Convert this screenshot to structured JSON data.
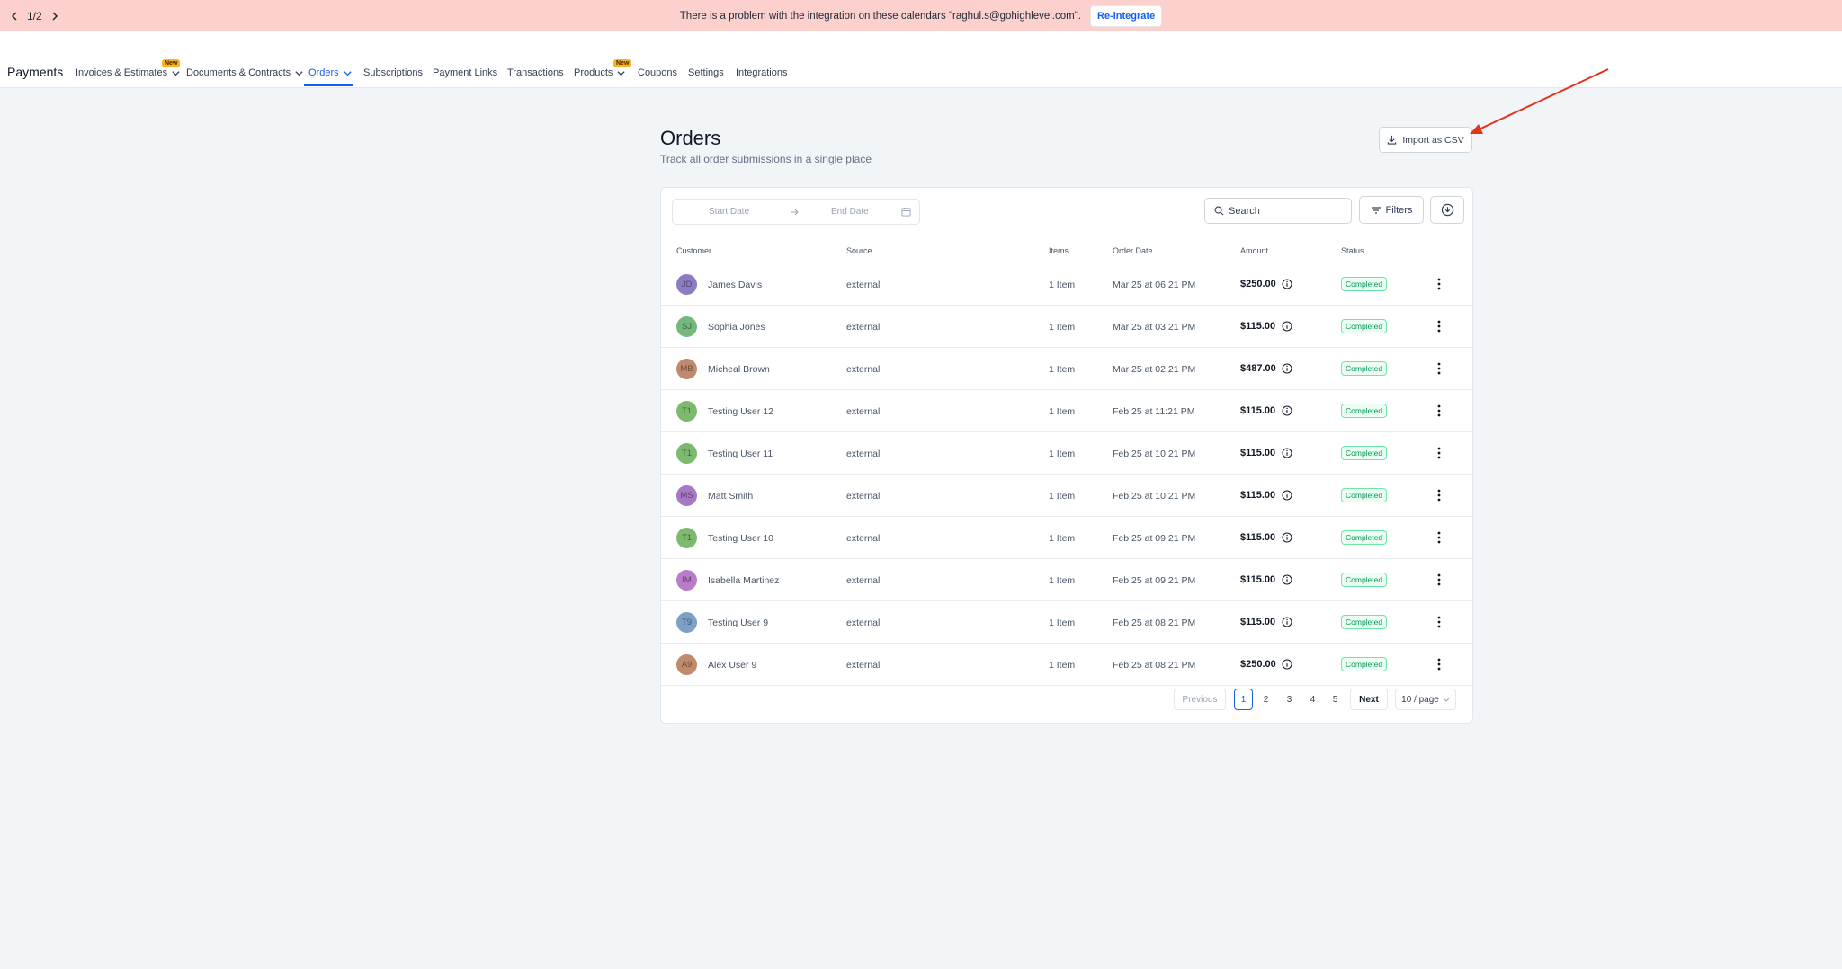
{
  "banner": {
    "pager": "1/2",
    "message": "There is a problem with the integration on these calendars \"raghul.s@gohighlevel.com\".",
    "action_label": "Re-integrate"
  },
  "nav": {
    "brand": "Payments",
    "items": [
      {
        "label": "Invoices & Estimates",
        "badge": "New",
        "dropdown": true
      },
      {
        "label": "Documents & Contracts",
        "dropdown": true
      },
      {
        "label": "Orders",
        "dropdown": true,
        "active": true
      },
      {
        "label": "Subscriptions"
      },
      {
        "label": "Payment Links"
      },
      {
        "label": "Transactions"
      },
      {
        "label": "Products",
        "badge": "New",
        "dropdown": true
      },
      {
        "label": "Coupons"
      },
      {
        "label": "Settings"
      },
      {
        "label": "Integrations"
      }
    ]
  },
  "page": {
    "title": "Orders",
    "subtitle": "Track all order submissions in a single place",
    "import_label": "Import as CSV"
  },
  "toolbar": {
    "start_placeholder": "Start Date",
    "end_placeholder": "End Date",
    "search_placeholder": "Search",
    "filters_label": "Filters"
  },
  "table": {
    "columns": [
      "Customer",
      "Source",
      "Items",
      "Order Date",
      "Amount",
      "Status"
    ],
    "rows": [
      {
        "initials": "JD",
        "avatar_color": "#8e7cc3",
        "customer": "James Davis",
        "source": "external",
        "items": "1 Item",
        "date": "Mar 25 at 06:21 PM",
        "amount": "$250.00",
        "status": "Completed"
      },
      {
        "initials": "SJ",
        "avatar_color": "#76b77e",
        "customer": "Sophia Jones",
        "source": "external",
        "items": "1 Item",
        "date": "Mar 25 at 03:21 PM",
        "amount": "$115.00",
        "status": "Completed"
      },
      {
        "initials": "MB",
        "avatar_color": "#c08a6d",
        "customer": "Micheal Brown",
        "source": "external",
        "items": "1 Item",
        "date": "Mar 25 at 02:21 PM",
        "amount": "$487.00",
        "status": "Completed"
      },
      {
        "initials": "T1",
        "avatar_color": "#7dba6f",
        "customer": "Testing User 12",
        "source": "external",
        "items": "1 Item",
        "date": "Feb 25 at 11:21 PM",
        "amount": "$115.00",
        "status": "Completed"
      },
      {
        "initials": "T1",
        "avatar_color": "#7dba6f",
        "customer": "Testing User 11",
        "source": "external",
        "items": "1 Item",
        "date": "Feb 25 at 10:21 PM",
        "amount": "$115.00",
        "status": "Completed"
      },
      {
        "initials": "MS",
        "avatar_color": "#a779c4",
        "customer": "Matt Smith",
        "source": "external",
        "items": "1 Item",
        "date": "Feb 25 at 10:21 PM",
        "amount": "$115.00",
        "status": "Completed"
      },
      {
        "initials": "T1",
        "avatar_color": "#7dba6f",
        "customer": "Testing User 10",
        "source": "external",
        "items": "1 Item",
        "date": "Feb 25 at 09:21 PM",
        "amount": "$115.00",
        "status": "Completed"
      },
      {
        "initials": "IM",
        "avatar_color": "#b87cc9",
        "customer": "Isabella Martinez",
        "source": "external",
        "items": "1 Item",
        "date": "Feb 25 at 09:21 PM",
        "amount": "$115.00",
        "status": "Completed"
      },
      {
        "initials": "T9",
        "avatar_color": "#7ea0c4",
        "customer": "Testing User 9",
        "source": "external",
        "items": "1 Item",
        "date": "Feb 25 at 08:21 PM",
        "amount": "$115.00",
        "status": "Completed"
      },
      {
        "initials": "A9",
        "avatar_color": "#c08a6d",
        "customer": "Alex User 9",
        "source": "external",
        "items": "1 Item",
        "date": "Feb 25 at 08:21 PM",
        "amount": "$250.00",
        "status": "Completed"
      }
    ]
  },
  "pagination": {
    "previous": "Previous",
    "pages": [
      "1",
      "2",
      "3",
      "4",
      "5"
    ],
    "current": "1",
    "next": "Next",
    "page_size": "10 / page"
  },
  "colors": {
    "accent": "#155eef",
    "banner_bg": "#fcd0cd",
    "status_green": "#039855",
    "annotation_arrow": "#e5331b"
  }
}
